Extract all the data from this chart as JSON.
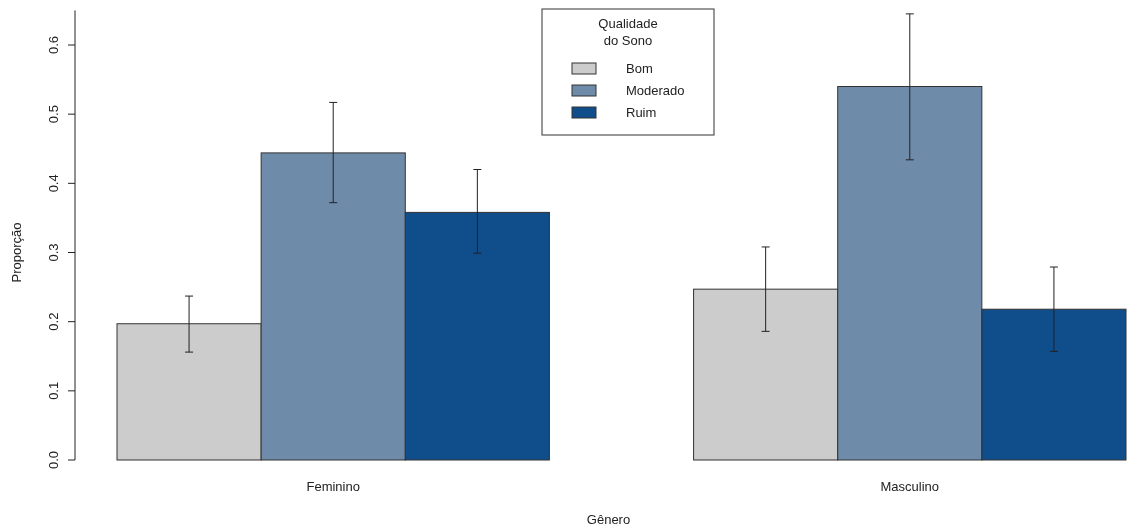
{
  "chart_data": {
    "type": "bar",
    "xlabel": "Gênero",
    "ylabel": "Proporção",
    "legend_title": "Qualidade\ndo Sono",
    "legend": "top",
    "categories": [
      "Feminino",
      "Masculino"
    ],
    "ylim": [
      0,
      0.65
    ],
    "yticks": [
      {
        "value": 0,
        "label": "0.0"
      },
      0.1,
      0.2,
      0.3,
      0.4,
      0.5,
      0.6
    ],
    "series": [
      {
        "name": "Bom",
        "color": "#cccccc",
        "values": [
          0.197,
          0.247
        ],
        "errors": [
          [
            0.156,
            0.237
          ],
          [
            0.186,
            0.308
          ]
        ]
      },
      {
        "name": "Moderado",
        "color": "#6e8caa",
        "values": [
          0.444,
          0.54
        ],
        "errors": [
          [
            0.372,
            0.517
          ],
          [
            0.434,
            0.645
          ]
        ]
      },
      {
        "name": "Ruim",
        "color": "#104e8b",
        "values": [
          0.358,
          0.218
        ],
        "errors": [
          [
            0.299,
            0.42
          ],
          [
            0.157,
            0.279
          ]
        ]
      }
    ]
  }
}
